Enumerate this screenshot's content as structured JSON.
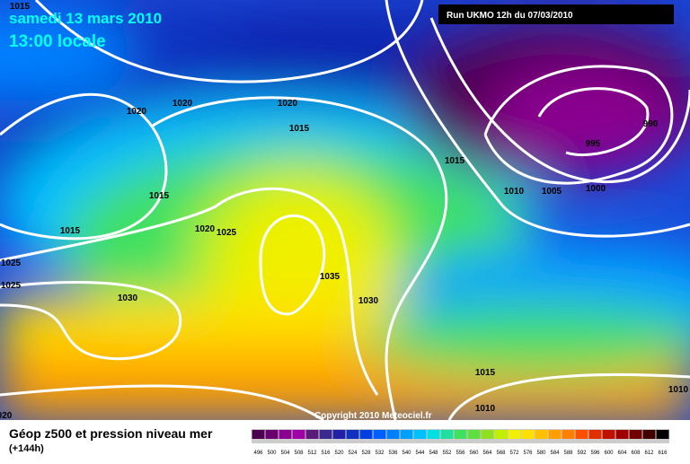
{
  "header": {
    "date": "samedi 13 mars 2010",
    "time": "13:00 locale",
    "run": "Run UKMO 12h du 07/03/2010"
  },
  "map": {
    "isobar_labels": [
      "1015",
      "1020",
      "1020",
      "1020",
      "1015",
      "1015",
      "1015",
      "1020",
      "1025",
      "1025",
      "1025",
      "1030",
      "1035",
      "1030",
      "1015",
      "1010",
      "1005",
      "1000",
      "995",
      "990",
      "1015",
      "1010",
      "1010",
      "020"
    ],
    "copyright": "Copyright 2010 Meteociel.fr"
  },
  "footer": {
    "title": "Géop z500 et pression niveau mer",
    "lead": "(+144h)",
    "scale": {
      "labels": [
        "496",
        "500",
        "504",
        "508",
        "512",
        "516",
        "520",
        "524",
        "528",
        "532",
        "536",
        "540",
        "544",
        "548",
        "552",
        "556",
        "560",
        "564",
        "568",
        "572",
        "576",
        "580",
        "584",
        "588",
        "592",
        "596",
        "600",
        "604",
        "608",
        "612",
        "616"
      ],
      "colors": [
        "#4b0050",
        "#6a0070",
        "#8a0090",
        "#a000a8",
        "#5a1a78",
        "#3a2a90",
        "#2020a8",
        "#1030c0",
        "#0040e0",
        "#0060ff",
        "#0080ff",
        "#00a0ff",
        "#00c0ff",
        "#00e0e0",
        "#20e0a0",
        "#40e060",
        "#60e040",
        "#90e020",
        "#c0f000",
        "#f0f000",
        "#ffe000",
        "#ffc000",
        "#ffa000",
        "#ff8000",
        "#ff5000",
        "#e03000",
        "#c01000",
        "#a00000",
        "#700000",
        "#400000",
        "#000000"
      ]
    }
  }
}
